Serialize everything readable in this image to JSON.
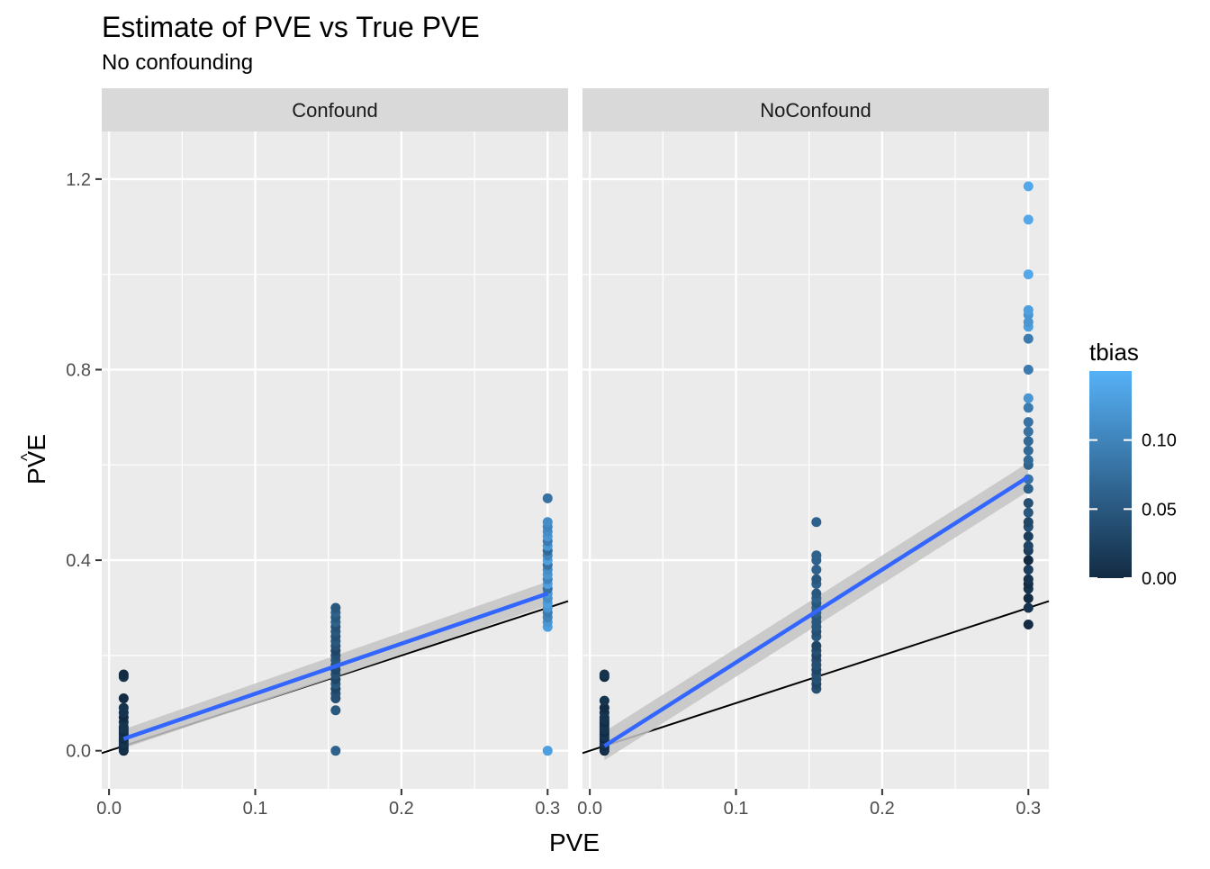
{
  "title": "Estimate of PVE vs True PVE",
  "subtitle": "No confounding",
  "x_axis_title": "PVE",
  "y_axis_title": "PVE",
  "y_axis_hat": "^",
  "legend_title": "tbias",
  "colors": {
    "panel_bg": "#EBEBEB",
    "strip_bg": "#D9D9D9",
    "grid": "#FFFFFF",
    "fit_line": "#3366FF",
    "ribbon": "#C4C4C4",
    "ref_line": "#000000",
    "low": "#132B43",
    "high": "#56B1F7"
  },
  "chart_data": {
    "type": "scatter",
    "facets": [
      "Confound",
      "NoConfound"
    ],
    "xlim": [
      -0.005,
      0.314
    ],
    "ylim": [
      -0.08,
      1.3
    ],
    "x_ticks": [
      0.0,
      0.1,
      0.2,
      0.3
    ],
    "x_tick_labels": [
      "0.0",
      "0.1",
      "0.2",
      "0.3"
    ],
    "y_ticks": [
      0.0,
      0.4,
      0.8,
      1.2
    ],
    "y_tick_labels": [
      "0.0",
      "0.4",
      "0.8",
      "1.2"
    ],
    "grid": true,
    "legend": {
      "title": "tbias",
      "position": "right",
      "range": [
        0,
        0.15
      ],
      "ticks": [
        0.0,
        0.05,
        0.1
      ],
      "tick_labels": [
        "0.00",
        "0.05",
        "0.10"
      ]
    },
    "reference_line": {
      "intercept": 0,
      "slope": 1
    },
    "panels": [
      {
        "name": "Confound",
        "points": [
          [
            0.01,
            0.0,
            0.0
          ],
          [
            0.01,
            0.005,
            0.01
          ],
          [
            0.01,
            0.01,
            0.0
          ],
          [
            0.01,
            0.015,
            0.01
          ],
          [
            0.01,
            0.02,
            0.01
          ],
          [
            0.01,
            0.025,
            0.0
          ],
          [
            0.01,
            0.03,
            0.01
          ],
          [
            0.01,
            0.035,
            0.01
          ],
          [
            0.01,
            0.04,
            0.0
          ],
          [
            0.01,
            0.045,
            0.01
          ],
          [
            0.01,
            0.05,
            0.01
          ],
          [
            0.01,
            0.06,
            0.01
          ],
          [
            0.01,
            0.07,
            0.0
          ],
          [
            0.01,
            0.08,
            0.01
          ],
          [
            0.01,
            0.09,
            0.01
          ],
          [
            0.01,
            0.11,
            0.0
          ],
          [
            0.01,
            0.155,
            0.01
          ],
          [
            0.01,
            0.16,
            0.0
          ],
          [
            0.155,
            0.0,
            0.06
          ],
          [
            0.155,
            0.085,
            0.05
          ],
          [
            0.155,
            0.11,
            0.04
          ],
          [
            0.155,
            0.12,
            0.04
          ],
          [
            0.155,
            0.13,
            0.03
          ],
          [
            0.155,
            0.14,
            0.05
          ],
          [
            0.155,
            0.15,
            0.03
          ],
          [
            0.155,
            0.16,
            0.04
          ],
          [
            0.155,
            0.17,
            0.03
          ],
          [
            0.155,
            0.18,
            0.04
          ],
          [
            0.155,
            0.19,
            0.05
          ],
          [
            0.155,
            0.2,
            0.04
          ],
          [
            0.155,
            0.21,
            0.03
          ],
          [
            0.155,
            0.22,
            0.04
          ],
          [
            0.155,
            0.23,
            0.05
          ],
          [
            0.155,
            0.24,
            0.04
          ],
          [
            0.155,
            0.25,
            0.05
          ],
          [
            0.155,
            0.26,
            0.04
          ],
          [
            0.155,
            0.27,
            0.06
          ],
          [
            0.155,
            0.28,
            0.05
          ],
          [
            0.155,
            0.29,
            0.06
          ],
          [
            0.155,
            0.3,
            0.05
          ],
          [
            0.3,
            0.0,
            0.13
          ],
          [
            0.3,
            0.26,
            0.13
          ],
          [
            0.3,
            0.27,
            0.12
          ],
          [
            0.3,
            0.28,
            0.1
          ],
          [
            0.3,
            0.29,
            0.09
          ],
          [
            0.3,
            0.3,
            0.12
          ],
          [
            0.3,
            0.31,
            0.13
          ],
          [
            0.3,
            0.32,
            0.11
          ],
          [
            0.3,
            0.33,
            0.12
          ],
          [
            0.3,
            0.34,
            0.08
          ],
          [
            0.3,
            0.35,
            0.13
          ],
          [
            0.3,
            0.36,
            0.1
          ],
          [
            0.3,
            0.37,
            0.12
          ],
          [
            0.3,
            0.38,
            0.11
          ],
          [
            0.3,
            0.39,
            0.08
          ],
          [
            0.3,
            0.4,
            0.13
          ],
          [
            0.3,
            0.41,
            0.1
          ],
          [
            0.3,
            0.42,
            0.07
          ],
          [
            0.3,
            0.43,
            0.12
          ],
          [
            0.3,
            0.44,
            0.09
          ],
          [
            0.3,
            0.45,
            0.12
          ],
          [
            0.3,
            0.46,
            0.11
          ],
          [
            0.3,
            0.47,
            0.1
          ],
          [
            0.3,
            0.48,
            0.11
          ],
          [
            0.3,
            0.53,
            0.08
          ]
        ],
        "fit": {
          "x_start": 0.01,
          "x_end": 0.3,
          "y_start": 0.025,
          "y_end": 0.33,
          "band_start": 0.02,
          "band_end": 0.025
        }
      },
      {
        "name": "NoConfound",
        "points": [
          [
            0.01,
            0.0,
            0.0
          ],
          [
            0.01,
            0.005,
            0.01
          ],
          [
            0.01,
            0.01,
            0.0
          ],
          [
            0.01,
            0.015,
            0.01
          ],
          [
            0.01,
            0.02,
            0.01
          ],
          [
            0.01,
            0.025,
            0.0
          ],
          [
            0.01,
            0.03,
            0.01
          ],
          [
            0.01,
            0.035,
            0.01
          ],
          [
            0.01,
            0.04,
            0.0
          ],
          [
            0.01,
            0.045,
            0.01
          ],
          [
            0.01,
            0.05,
            0.01
          ],
          [
            0.01,
            0.055,
            0.01
          ],
          [
            0.01,
            0.06,
            0.0
          ],
          [
            0.01,
            0.065,
            0.01
          ],
          [
            0.01,
            0.07,
            0.01
          ],
          [
            0.01,
            0.08,
            0.01
          ],
          [
            0.01,
            0.09,
            0.0
          ],
          [
            0.01,
            0.105,
            0.01
          ],
          [
            0.01,
            0.155,
            0.0
          ],
          [
            0.01,
            0.16,
            0.01
          ],
          [
            0.155,
            0.13,
            0.04
          ],
          [
            0.155,
            0.14,
            0.03
          ],
          [
            0.155,
            0.15,
            0.04
          ],
          [
            0.155,
            0.16,
            0.04
          ],
          [
            0.155,
            0.17,
            0.03
          ],
          [
            0.155,
            0.18,
            0.04
          ],
          [
            0.155,
            0.19,
            0.04
          ],
          [
            0.155,
            0.2,
            0.03
          ],
          [
            0.155,
            0.21,
            0.04
          ],
          [
            0.155,
            0.22,
            0.03
          ],
          [
            0.155,
            0.24,
            0.05
          ],
          [
            0.155,
            0.25,
            0.04
          ],
          [
            0.155,
            0.26,
            0.05
          ],
          [
            0.155,
            0.27,
            0.05
          ],
          [
            0.155,
            0.28,
            0.05
          ],
          [
            0.155,
            0.29,
            0.06
          ],
          [
            0.155,
            0.3,
            0.06
          ],
          [
            0.155,
            0.31,
            0.05
          ],
          [
            0.155,
            0.32,
            0.06
          ],
          [
            0.155,
            0.33,
            0.05
          ],
          [
            0.155,
            0.35,
            0.06
          ],
          [
            0.155,
            0.36,
            0.05
          ],
          [
            0.155,
            0.38,
            0.06
          ],
          [
            0.155,
            0.4,
            0.06
          ],
          [
            0.155,
            0.41,
            0.06
          ],
          [
            0.155,
            0.48,
            0.06
          ],
          [
            0.3,
            0.265,
            0.0
          ],
          [
            0.3,
            0.3,
            0.01
          ],
          [
            0.3,
            0.32,
            0.0
          ],
          [
            0.3,
            0.34,
            0.01
          ],
          [
            0.3,
            0.35,
            0.0
          ],
          [
            0.3,
            0.36,
            0.01
          ],
          [
            0.3,
            0.38,
            0.02
          ],
          [
            0.3,
            0.4,
            0.0
          ],
          [
            0.3,
            0.42,
            0.02
          ],
          [
            0.3,
            0.43,
            0.03
          ],
          [
            0.3,
            0.45,
            0.02
          ],
          [
            0.3,
            0.47,
            0.04
          ],
          [
            0.3,
            0.48,
            0.03
          ],
          [
            0.3,
            0.5,
            0.05
          ],
          [
            0.3,
            0.52,
            0.04
          ],
          [
            0.3,
            0.55,
            0.06
          ],
          [
            0.3,
            0.57,
            0.08
          ],
          [
            0.3,
            0.6,
            0.06
          ],
          [
            0.3,
            0.61,
            0.07
          ],
          [
            0.3,
            0.63,
            0.07
          ],
          [
            0.3,
            0.65,
            0.07
          ],
          [
            0.3,
            0.67,
            0.08
          ],
          [
            0.3,
            0.69,
            0.08
          ],
          [
            0.3,
            0.72,
            0.09
          ],
          [
            0.3,
            0.74,
            0.12
          ],
          [
            0.3,
            0.8,
            0.09
          ],
          [
            0.3,
            0.865,
            0.09
          ],
          [
            0.3,
            0.89,
            0.13
          ],
          [
            0.3,
            0.9,
            0.12
          ],
          [
            0.3,
            0.915,
            0.12
          ],
          [
            0.3,
            0.925,
            0.13
          ],
          [
            0.3,
            1.0,
            0.14
          ],
          [
            0.3,
            1.115,
            0.14
          ],
          [
            0.3,
            1.185,
            0.14
          ]
        ],
        "fit": {
          "x_start": 0.01,
          "x_end": 0.3,
          "y_start": 0.01,
          "y_end": 0.575,
          "band_start": 0.03,
          "band_end": 0.03
        }
      }
    ]
  }
}
